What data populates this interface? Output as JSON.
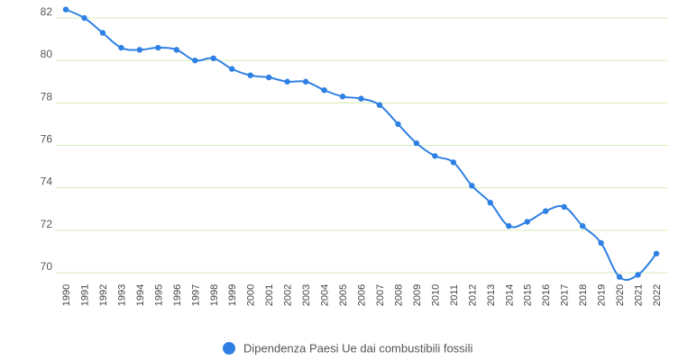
{
  "chart_data": {
    "type": "line",
    "x": [
      "1990",
      "1991",
      "1992",
      "1993",
      "1994",
      "1995",
      "1996",
      "1997",
      "1998",
      "1999",
      "2000",
      "2001",
      "2002",
      "2003",
      "2004",
      "2005",
      "2006",
      "2007",
      "2008",
      "2009",
      "2010",
      "2011",
      "2012",
      "2013",
      "2014",
      "2015",
      "2016",
      "2017",
      "2018",
      "2019",
      "2020",
      "2021",
      "2022"
    ],
    "series": [
      {
        "name": "Dipendenza Paesi Ue dai combustibili fossili",
        "values": [
          82.4,
          82.0,
          81.3,
          80.6,
          80.5,
          80.6,
          80.5,
          80.0,
          80.1,
          79.6,
          79.3,
          79.2,
          79.0,
          79.0,
          78.6,
          78.3,
          78.2,
          77.9,
          77.0,
          76.1,
          75.5,
          75.2,
          74.1,
          73.3,
          72.2,
          72.4,
          72.9,
          73.1,
          72.2,
          71.4,
          69.8,
          69.9,
          70.9
        ],
        "color": "#2f80e4"
      }
    ],
    "yticks": [
      70,
      72,
      74,
      76,
      78,
      80,
      82
    ],
    "ylim": [
      69.2,
      82.8
    ],
    "grid": "horizontal",
    "gridColor": "#d4ecb4",
    "legend": "bottom-center",
    "title": "",
    "xlabel": "",
    "ylabel": ""
  }
}
